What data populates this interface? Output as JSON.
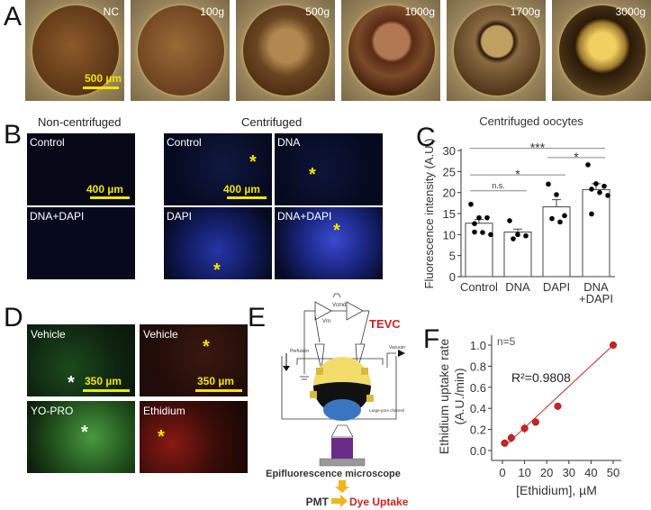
{
  "panel_a": {
    "letter": "A",
    "labels": [
      "NC",
      "100g",
      "500g",
      "1000g",
      "1700g",
      "3000g"
    ],
    "scale_bar": "500 µm"
  },
  "panel_b": {
    "letter": "B",
    "header_left": "Non-centrifuged",
    "header_right": "Centrifuged",
    "images": [
      "Control",
      "DNA+DAPI",
      "Control",
      "DNA",
      "DAPI",
      "DNA+DAPI"
    ],
    "scale_bar": "400 µm"
  },
  "panel_d": {
    "letter": "D",
    "images": [
      "Vehicle",
      "Vehicle",
      "YO-PRO",
      "Ethidium"
    ],
    "scale_bar": "350 µm"
  },
  "panel_e": {
    "letter": "E",
    "tevc": "TEVC",
    "perfusion": "Perfusion",
    "vacuum": "Vacuum",
    "channel": "Large-pore channel",
    "vm": "Vm",
    "vcmd": "Vcmd",
    "microscope": "Epifluorescence microscope",
    "pmt": "PMT",
    "dye": "Dye Uptake"
  },
  "chart_data": [
    {
      "panel": "C",
      "type": "bar",
      "title": "Centrifuged oocytes",
      "ylabel": "Fluorescence intensity (A.U.)",
      "xlabel": "",
      "categories": [
        "Control",
        "DNA",
        "DAPI",
        "DNA\n+DAPI"
      ],
      "values": [
        12.7,
        10.6,
        16.6,
        20.7
      ],
      "error_upper": [
        13.6,
        11.3,
        18.3,
        22.1
      ],
      "points": [
        [
          17.2,
          14,
          14,
          12.6,
          10.5,
          10,
          10.6
        ],
        [
          13.3,
          10,
          9.7,
          9
        ],
        [
          22,
          19.5,
          14.5,
          13.8,
          13
        ],
        [
          26.6,
          22.1,
          21.5,
          20.8,
          20,
          19.3,
          14.9
        ]
      ],
      "yticks": [
        0,
        5,
        10,
        15,
        20,
        25,
        30
      ],
      "ylim": [
        0,
        30
      ],
      "significance": [
        {
          "from": 0,
          "to": 1,
          "label": "n.s.",
          "y": 20.4
        },
        {
          "from": 0,
          "to": 2,
          "label": "*",
          "y": 24.2
        },
        {
          "from": 2,
          "to": 3,
          "label": "*",
          "y": 28.3
        },
        {
          "from": 0,
          "to": 3,
          "label": "***",
          "y": 30.5
        }
      ]
    },
    {
      "panel": "F",
      "type": "scatter",
      "xlabel": "[Ethidium], µM",
      "ylabel": "Ethidium uptake rate (A.U./min)",
      "annotation": "R²=0.9808",
      "n_label": "n=5",
      "x": [
        1,
        4,
        10,
        15,
        25,
        50
      ],
      "y": [
        0.07,
        0.12,
        0.21,
        0.27,
        0.42,
        1.0
      ],
      "yerr": [
        0.03,
        0.05,
        0.05,
        0.02,
        0.02,
        0.01
      ],
      "fit": {
        "x": [
          1,
          50
        ],
        "y": [
          0.04,
          1.0
        ]
      },
      "xticks": [
        0,
        10,
        20,
        30,
        40,
        50
      ],
      "yticks": [
        0.0,
        0.2,
        0.4,
        0.6,
        0.8,
        1.0
      ],
      "xlim": [
        -5,
        52
      ],
      "ylim": [
        -0.1,
        1.1
      ],
      "color": "#cc2222"
    }
  ]
}
